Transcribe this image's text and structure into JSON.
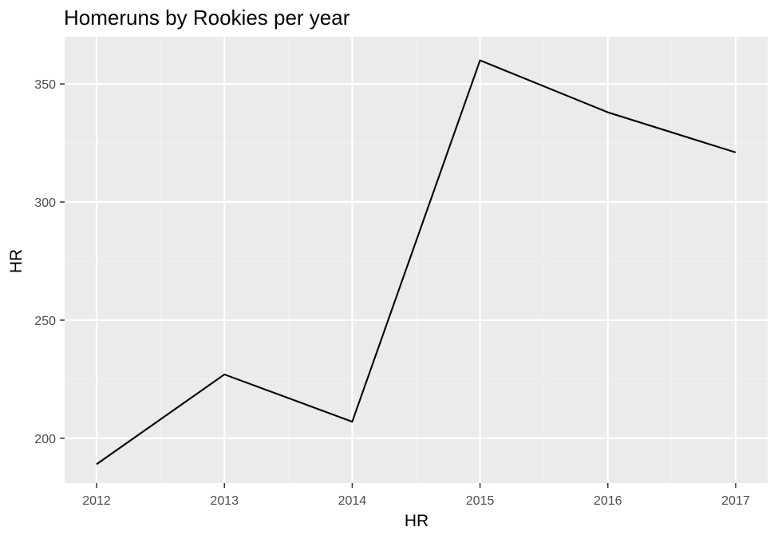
{
  "chart_data": {
    "type": "line",
    "title": "Homeruns by Rookies per year",
    "xlabel": "HR",
    "ylabel": "HR",
    "x": [
      2012,
      2013,
      2014,
      2015,
      2016,
      2017
    ],
    "x_ticks": [
      "2012",
      "2013",
      "2014",
      "2015",
      "2016",
      "2017"
    ],
    "y_ticks": [
      "200",
      "250",
      "300",
      "350"
    ],
    "series": [
      {
        "values": [
          189,
          227,
          207,
          360,
          338,
          321
        ]
      }
    ],
    "xlim": [
      2011.75,
      2017.25
    ],
    "ylim": [
      181,
      370
    ],
    "grid": true,
    "legend": "none",
    "colors": {
      "panel_background": "#ebebeb",
      "grid_major": "#ffffff",
      "grid_minor": "#f2f2f2",
      "line": "#000000",
      "tick_label": "#4d4d4d"
    }
  }
}
